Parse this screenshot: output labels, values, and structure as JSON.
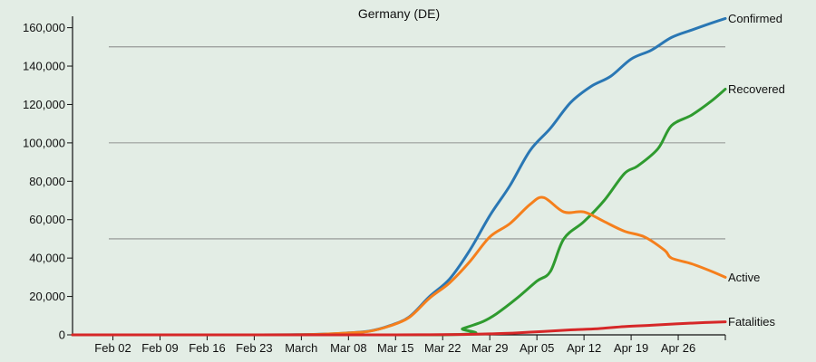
{
  "chart_data": {
    "type": "line",
    "title": "Germany (DE)",
    "xlabel": "",
    "ylabel": "",
    "ylim": [
      0,
      165000
    ],
    "yticks": [
      0,
      20000,
      40000,
      60000,
      80000,
      100000,
      120000,
      140000,
      160000
    ],
    "ytick_labels": [
      "0",
      "20,000",
      "40,000",
      "60,000",
      "80,000",
      "100,000",
      "120,000",
      "140,000",
      "160,000"
    ],
    "gridlines_y": [
      50000,
      100000,
      150000
    ],
    "x_start": "2020-01-27",
    "x_end": "2020-05-03",
    "xticks": [
      {
        "date": "2020-02-02",
        "label": "Feb 02"
      },
      {
        "date": "2020-02-09",
        "label": "Feb 09"
      },
      {
        "date": "2020-02-16",
        "label": "Feb 16"
      },
      {
        "date": "2020-02-23",
        "label": "Feb 23"
      },
      {
        "date": "2020-03-01",
        "label": "March"
      },
      {
        "date": "2020-03-08",
        "label": "Mar 08"
      },
      {
        "date": "2020-03-15",
        "label": "Mar 15"
      },
      {
        "date": "2020-03-22",
        "label": "Mar 22"
      },
      {
        "date": "2020-03-29",
        "label": "Mar 29"
      },
      {
        "date": "2020-04-05",
        "label": "Apr 05"
      },
      {
        "date": "2020-04-12",
        "label": "Apr 12"
      },
      {
        "date": "2020-04-19",
        "label": "Apr 19"
      },
      {
        "date": "2020-04-26",
        "label": "Apr 26"
      }
    ],
    "series": [
      {
        "name": "Confirmed",
        "color": "#2a77b4",
        "points": [
          [
            "2020-01-27",
            0
          ],
          [
            "2020-02-24",
            16
          ],
          [
            "2020-03-01",
            130
          ],
          [
            "2020-03-05",
            480
          ],
          [
            "2020-03-08",
            1040
          ],
          [
            "2020-03-11",
            1900
          ],
          [
            "2020-03-14",
            4600
          ],
          [
            "2020-03-17",
            9300
          ],
          [
            "2020-03-20",
            19800
          ],
          [
            "2020-03-23",
            29000
          ],
          [
            "2020-03-26",
            43900
          ],
          [
            "2020-03-29",
            62100
          ],
          [
            "2020-04-01",
            77800
          ],
          [
            "2020-04-04",
            96100
          ],
          [
            "2020-04-07",
            107600
          ],
          [
            "2020-04-10",
            121000
          ],
          [
            "2020-04-13",
            129300
          ],
          [
            "2020-04-16",
            134800
          ],
          [
            "2020-04-19",
            143700
          ],
          [
            "2020-04-22",
            148300
          ],
          [
            "2020-04-25",
            154900
          ],
          [
            "2020-04-28",
            158800
          ],
          [
            "2020-05-01",
            162500
          ],
          [
            "2020-05-03",
            164800
          ]
        ]
      },
      {
        "name": "Recovered",
        "color": "#2f9b2f",
        "points": [
          [
            "2020-01-27",
            0
          ],
          [
            "2020-03-22",
            0
          ],
          [
            "2020-03-25",
            3300
          ],
          [
            "2020-03-28",
            7000
          ],
          [
            "2020-03-30",
            11000
          ],
          [
            "2020-04-02",
            19000
          ],
          [
            "2020-04-05",
            28000
          ],
          [
            "2020-04-07",
            33000
          ],
          [
            "2020-04-09",
            50000
          ],
          [
            "2020-04-12",
            59000
          ],
          [
            "2020-04-15",
            70000
          ],
          [
            "2020-04-18",
            84000
          ],
          [
            "2020-04-20",
            88000
          ],
          [
            "2020-04-23",
            97000
          ],
          [
            "2020-04-25",
            109000
          ],
          [
            "2020-04-28",
            114500
          ],
          [
            "2020-05-01",
            122000
          ],
          [
            "2020-05-03",
            128000
          ]
        ]
      },
      {
        "name": "Active",
        "color": "#f57f1c",
        "points": [
          [
            "2020-01-27",
            0
          ],
          [
            "2020-02-24",
            14
          ],
          [
            "2020-03-01",
            110
          ],
          [
            "2020-03-05",
            450
          ],
          [
            "2020-03-08",
            1000
          ],
          [
            "2020-03-11",
            1800
          ],
          [
            "2020-03-14",
            4500
          ],
          [
            "2020-03-17",
            9000
          ],
          [
            "2020-03-20",
            19000
          ],
          [
            "2020-03-23",
            27000
          ],
          [
            "2020-03-26",
            38000
          ],
          [
            "2020-03-29",
            51000
          ],
          [
            "2020-04-01",
            58000
          ],
          [
            "2020-04-04",
            68000
          ],
          [
            "2020-04-06",
            71500
          ],
          [
            "2020-04-09",
            64000
          ],
          [
            "2020-04-12",
            64000
          ],
          [
            "2020-04-15",
            59000
          ],
          [
            "2020-04-18",
            54000
          ],
          [
            "2020-04-21",
            51000
          ],
          [
            "2020-04-24",
            44000
          ],
          [
            "2020-04-25",
            40000
          ],
          [
            "2020-04-28",
            37000
          ],
          [
            "2020-05-01",
            33000
          ],
          [
            "2020-05-03",
            30000
          ]
        ]
      },
      {
        "name": "Fatalities",
        "color": "#d62728",
        "points": [
          [
            "2020-01-27",
            0
          ],
          [
            "2020-03-09",
            2
          ],
          [
            "2020-03-15",
            12
          ],
          [
            "2020-03-20",
            60
          ],
          [
            "2020-03-25",
            200
          ],
          [
            "2020-03-29",
            500
          ],
          [
            "2020-04-02",
            1000
          ],
          [
            "2020-04-06",
            1800
          ],
          [
            "2020-04-10",
            2600
          ],
          [
            "2020-04-14",
            3200
          ],
          [
            "2020-04-18",
            4300
          ],
          [
            "2020-04-22",
            5000
          ],
          [
            "2020-04-26",
            5800
          ],
          [
            "2020-04-30",
            6400
          ],
          [
            "2020-05-03",
            6800
          ]
        ]
      }
    ]
  }
}
